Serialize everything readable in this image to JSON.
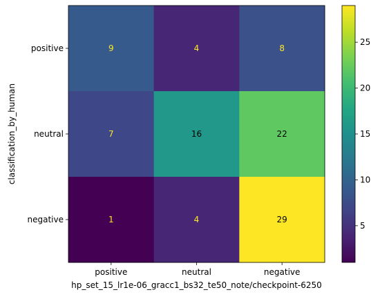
{
  "chart_data": {
    "type": "heatmap",
    "title": "",
    "xlabel": "hp_set_15_lr1e-06_gracc1_bs32_te50_note/checkpoint-6250",
    "ylabel": "classification_by_human",
    "x_categories": [
      "positive",
      "neutral",
      "negative"
    ],
    "y_categories": [
      "positive",
      "neutral",
      "negative"
    ],
    "values": [
      [
        9,
        4,
        8
      ],
      [
        7,
        16,
        22
      ],
      [
        1,
        4,
        29
      ]
    ],
    "colormap": "viridis",
    "color_range": [
      1,
      29
    ],
    "colorbar_ticks": [
      5,
      10,
      15,
      20,
      25
    ],
    "text_color_light": "#fde725",
    "text_color_dark": "#000000",
    "grid": false
  }
}
